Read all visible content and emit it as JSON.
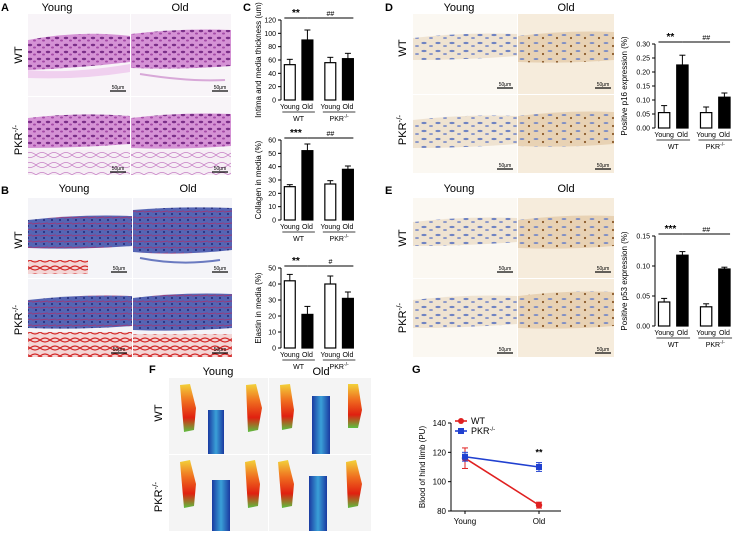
{
  "panels": {
    "A": {
      "label": "A",
      "col_young": "Young",
      "col_old": "Old",
      "row_wt": "WT",
      "row_pkr": "PKR",
      "sup": "-/-",
      "scale": "50μm"
    },
    "B": {
      "label": "B",
      "col_young": "Young",
      "col_old": "Old",
      "row_wt": "WT",
      "row_pkr": "PKR",
      "sup": "-/-",
      "scale": "50μm"
    },
    "D": {
      "label": "D",
      "col_young": "Young",
      "col_old": "Old",
      "row_wt": "WT",
      "row_pkr": "PKR",
      "sup": "-/-",
      "scale": "50μm"
    },
    "E": {
      "label": "E",
      "col_young": "Young",
      "col_old": "Old",
      "row_wt": "WT",
      "row_pkr": "PKR",
      "sup": "-/-",
      "scale": "50μm"
    },
    "F": {
      "label": "F",
      "col_young": "Young",
      "col_old": "Old",
      "row_wt": "WT",
      "row_pkr": "PKR",
      "sup": "-/-"
    },
    "C": {
      "label": "C"
    },
    "G": {
      "label": "G"
    }
  },
  "colors": {
    "he_tissue": "#c878c8",
    "he_fat": "#e8cde0",
    "mt_tissue": "#4a5aa8",
    "mt_red": "#d03030",
    "ihc_bg": "#f4efe6",
    "ihc_nuc": "#5a6fb0"
  },
  "chart_data": [
    {
      "id": "C1",
      "type": "bar",
      "panel": "C",
      "ylabel": "Intima and media thickness (um)",
      "ylim": [
        0,
        120
      ],
      "yticks": [
        0,
        20,
        40,
        60,
        80,
        100,
        120
      ],
      "categories": [
        "Young",
        "Old",
        "Young",
        "Old"
      ],
      "groups": [
        "WT",
        "PKR"
      ],
      "group_sup": "-/-",
      "values": [
        53,
        90,
        56,
        62
      ],
      "errors": [
        8,
        15,
        8,
        8
      ],
      "fills": [
        "white",
        "black",
        "white",
        "black"
      ],
      "sig": [
        {
          "text": "**",
          "from": 0,
          "to": 1
        },
        {
          "text": "##",
          "from": 1,
          "to": 3
        }
      ]
    },
    {
      "id": "C2",
      "type": "bar",
      "panel": "C",
      "ylabel": "Collagen in media (%)",
      "ylim": [
        0,
        60
      ],
      "yticks": [
        0,
        10,
        20,
        30,
        40,
        50,
        60
      ],
      "categories": [
        "Young",
        "Old",
        "Young",
        "Old"
      ],
      "groups": [
        "WT",
        "PKR"
      ],
      "group_sup": "-/-",
      "values": [
        25,
        52,
        27,
        38
      ],
      "errors": [
        1.5,
        5,
        2.5,
        2.5
      ],
      "fills": [
        "white",
        "black",
        "white",
        "black"
      ],
      "sig": [
        {
          "text": "***",
          "from": 0,
          "to": 1
        },
        {
          "text": "##",
          "from": 1,
          "to": 3
        }
      ]
    },
    {
      "id": "C3",
      "type": "bar",
      "panel": "C",
      "ylabel": "Elastin in media (%)",
      "ylim": [
        0,
        50
      ],
      "yticks": [
        0,
        10,
        20,
        30,
        40,
        50
      ],
      "categories": [
        "Young",
        "Old",
        "Young",
        "Old"
      ],
      "groups": [
        "WT",
        "PKR"
      ],
      "group_sup": "-/-",
      "values": [
        42,
        21,
        40,
        31
      ],
      "errors": [
        4,
        5,
        5,
        4
      ],
      "fills": [
        "white",
        "black",
        "white",
        "black"
      ],
      "sig": [
        {
          "text": "**",
          "from": 0,
          "to": 1
        },
        {
          "text": "#",
          "from": 1,
          "to": 3
        }
      ]
    },
    {
      "id": "D1",
      "type": "bar",
      "panel": "D",
      "ylabel": "Positive p16 expression (%)",
      "ylim": [
        0,
        0.3
      ],
      "yticks": [
        0,
        0.05,
        0.1,
        0.15,
        0.2,
        0.25,
        0.3
      ],
      "yticklabels": [
        "0.00",
        "0.05",
        "0.10",
        "0.15",
        "0.20",
        "0.25",
        "0.30"
      ],
      "categories": [
        "Young",
        "Old",
        "Young",
        "Old"
      ],
      "groups": [
        "WT",
        "PKR"
      ],
      "group_sup": "-/-",
      "values": [
        0.055,
        0.225,
        0.055,
        0.11
      ],
      "errors": [
        0.025,
        0.035,
        0.02,
        0.015
      ],
      "fills": [
        "white",
        "black",
        "white",
        "black"
      ],
      "sig": [
        {
          "text": "**",
          "from": 0,
          "to": 1
        },
        {
          "text": "##",
          "from": 1,
          "to": 3
        }
      ]
    },
    {
      "id": "E1",
      "type": "bar",
      "panel": "E",
      "ylabel": "Positive p53 expression (%)",
      "ylim": [
        0,
        0.15
      ],
      "yticks": [
        0,
        0.05,
        0.1,
        0.15
      ],
      "yticklabels": [
        "0.00",
        "0.05",
        "0.10",
        "0.15"
      ],
      "categories": [
        "Young",
        "Old",
        "Young",
        "Old"
      ],
      "groups": [
        "WT",
        "PKR"
      ],
      "group_sup": "-/-",
      "values": [
        0.04,
        0.118,
        0.032,
        0.095
      ],
      "errors": [
        0.006,
        0.006,
        0.005,
        0.003
      ],
      "fills": [
        "white",
        "black",
        "white",
        "black"
      ],
      "sig": [
        {
          "text": "***",
          "from": 0,
          "to": 1
        },
        {
          "text": "##",
          "from": 1,
          "to": 3
        }
      ]
    },
    {
      "id": "G1",
      "type": "line",
      "panel": "G",
      "ylabel": "Blood of hind limb (PU)",
      "ylim": [
        80,
        140
      ],
      "yticks": [
        80,
        100,
        120,
        140
      ],
      "categories": [
        "Young",
        "Old"
      ],
      "series": [
        {
          "name": "WT",
          "sup": "",
          "color": "#e02020",
          "marker": "circle",
          "values": [
            116,
            84
          ],
          "errors": [
            7,
            2
          ]
        },
        {
          "name": "PKR",
          "sup": "-/-",
          "color": "#2040d0",
          "marker": "square",
          "values": [
            117,
            110
          ],
          "errors": [
            3,
            3
          ]
        }
      ],
      "annotation": {
        "text": "**",
        "at": 1
      }
    }
  ]
}
